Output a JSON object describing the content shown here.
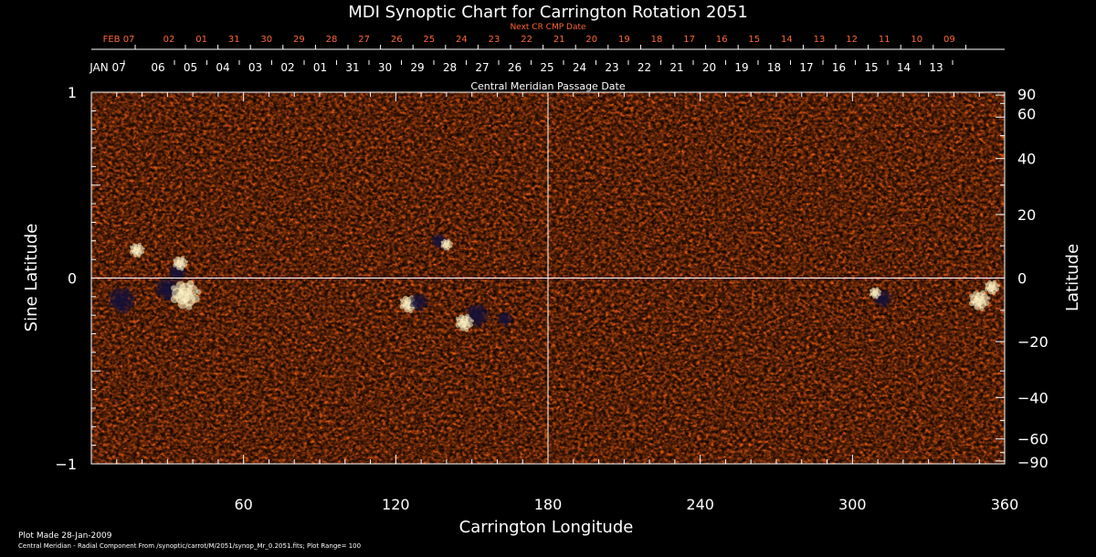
{
  "chart_data": {
    "type": "heatmap",
    "title": "MDI Synoptic Chart for Carrington Rotation 2051",
    "xlabel": "Carrington Longitude",
    "ylabel_left": "Sine Latitude",
    "ylabel_right": "Latitude",
    "top_axis_1_label": "Next CR CMP Date",
    "top_axis_2_label": "Central Meridian Passage Date",
    "xlim": [
      0,
      360
    ],
    "ylim": [
      -1,
      1
    ],
    "x_ticks": [
      60,
      120,
      180,
      240,
      300,
      360
    ],
    "y_left_ticks": [
      {
        "value": 1,
        "label": "1"
      },
      {
        "value": 0,
        "label": "0"
      },
      {
        "value": -1,
        "label": "−1"
      }
    ],
    "y_right_ticks": [
      {
        "deg": 90,
        "label": "90"
      },
      {
        "deg": 60,
        "label": "60"
      },
      {
        "deg": 40,
        "label": "40"
      },
      {
        "deg": 20,
        "label": "20"
      },
      {
        "deg": 0,
        "label": "0"
      },
      {
        "deg": -20,
        "label": "−20"
      },
      {
        "deg": -40,
        "label": "−40"
      },
      {
        "deg": -60,
        "label": "−60"
      },
      {
        "deg": -90,
        "label": "−90"
      }
    ],
    "top_dates_next": [
      "FEB 07",
      "02",
      "01",
      "31",
      "30",
      "29",
      "28",
      "27",
      "26",
      "25",
      "24",
      "23",
      "22",
      "21",
      "20",
      "19",
      "18",
      "17",
      "16",
      "15",
      "14",
      "13",
      "12",
      "11",
      "10",
      "09"
    ],
    "top_dates_cmp": [
      "JAN 07",
      "06",
      "05",
      "04",
      "03",
      "02",
      "01",
      "31",
      "30",
      "29",
      "28",
      "27",
      "26",
      "25",
      "24",
      "23",
      "22",
      "21",
      "20",
      "19",
      "18",
      "17",
      "16",
      "15",
      "14",
      "13"
    ],
    "plot_range": 100,
    "colors": {
      "background": "#000000",
      "axis": "#ffffff",
      "next_dates": "#ff6633",
      "map_base": "#e85a10",
      "map_positive": "#fff6c8",
      "map_negative": "#14103a"
    },
    "active_regions": [
      {
        "lon": 12,
        "sinlat": -0.12,
        "polarity": "negative",
        "strength": 0.9
      },
      {
        "lon": 18,
        "sinlat": 0.15,
        "polarity": "positive",
        "strength": 0.5
      },
      {
        "lon": 30,
        "sinlat": -0.06,
        "polarity": "negative",
        "strength": 0.8
      },
      {
        "lon": 34,
        "sinlat": 0.03,
        "polarity": "negative",
        "strength": 0.6
      },
      {
        "lon": 37,
        "sinlat": -0.09,
        "polarity": "positive",
        "strength": 1.0
      },
      {
        "lon": 35,
        "sinlat": 0.08,
        "polarity": "positive",
        "strength": 0.5
      },
      {
        "lon": 125,
        "sinlat": -0.14,
        "polarity": "positive",
        "strength": 0.6
      },
      {
        "lon": 129,
        "sinlat": -0.13,
        "polarity": "negative",
        "strength": 0.6
      },
      {
        "lon": 137,
        "sinlat": 0.2,
        "polarity": "negative",
        "strength": 0.5
      },
      {
        "lon": 140,
        "sinlat": 0.18,
        "polarity": "positive",
        "strength": 0.4
      },
      {
        "lon": 152,
        "sinlat": -0.2,
        "polarity": "negative",
        "strength": 0.8
      },
      {
        "lon": 147,
        "sinlat": -0.24,
        "polarity": "positive",
        "strength": 0.6
      },
      {
        "lon": 163,
        "sinlat": -0.22,
        "polarity": "negative",
        "strength": 0.5
      },
      {
        "lon": 312,
        "sinlat": -0.11,
        "polarity": "negative",
        "strength": 0.6
      },
      {
        "lon": 309,
        "sinlat": -0.08,
        "polarity": "positive",
        "strength": 0.4
      },
      {
        "lon": 350,
        "sinlat": -0.12,
        "polarity": "positive",
        "strength": 0.7
      },
      {
        "lon": 355,
        "sinlat": -0.05,
        "polarity": "positive",
        "strength": 0.5
      }
    ]
  },
  "footer": {
    "plot_made": "Plot Made 28-Jan-2009",
    "description": "Central Meridian - Radial Component From /synoptic/carrot/M/2051/synop_Mr_0.2051.fits; Plot Range=  100"
  }
}
